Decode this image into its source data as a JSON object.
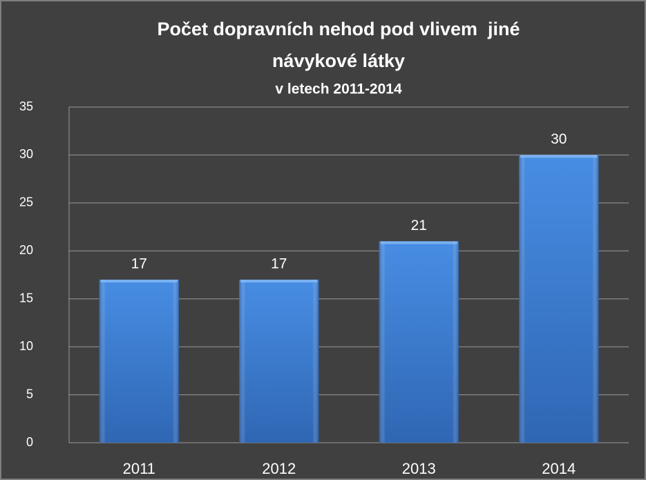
{
  "chart_data": {
    "type": "bar",
    "title": [
      "Počet dopravních nehod pod vlivem  jiné",
      "návykové látky"
    ],
    "subtitle": "v letech 2011-2014",
    "categories": [
      "2011",
      "2012",
      "2013",
      "2014"
    ],
    "values": [
      17,
      17,
      21,
      30
    ],
    "color": "#3b7fd6",
    "ylim": [
      0,
      35
    ],
    "yticks": [
      0,
      5,
      10,
      15,
      20,
      25,
      30,
      35
    ],
    "grid": true
  }
}
